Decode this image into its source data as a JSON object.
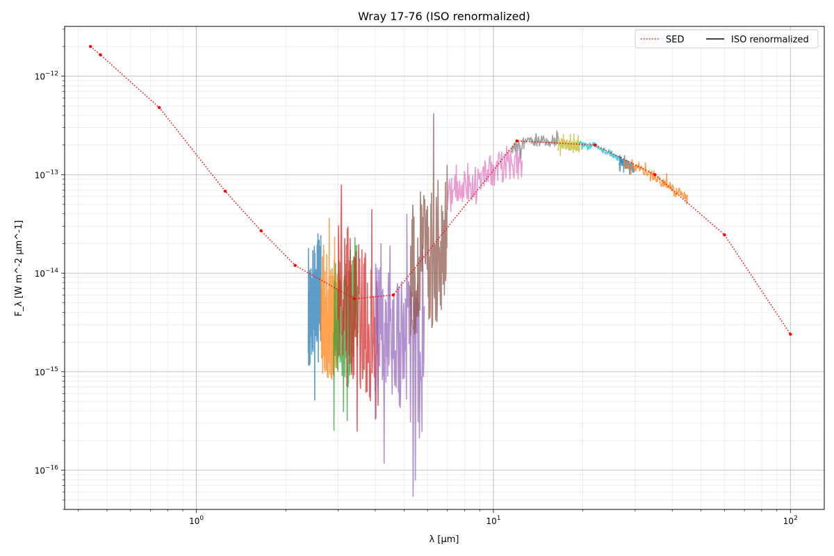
{
  "chart_data": {
    "type": "line",
    "title": "Wray 17-76 (ISO renormalized)",
    "xlabel": "λ [μm]",
    "ylabel": "F_λ [W m^-2 μm^-1]",
    "x_scale": "log",
    "y_scale": "log",
    "xlim": [
      0.36,
      130
    ],
    "ylim": [
      4e-17,
      3.2e-12
    ],
    "grid": "major and minor",
    "legend_position": "top-right",
    "x_ticks": [
      {
        "value": 1,
        "mantissa": "10",
        "exponent": "0"
      },
      {
        "value": 10,
        "mantissa": "10",
        "exponent": "1"
      },
      {
        "value": 100,
        "mantissa": "10",
        "exponent": "2"
      }
    ],
    "y_ticks": [
      {
        "value": 1e-16,
        "mantissa": "10",
        "exponent": "−16"
      },
      {
        "value": 1e-15,
        "mantissa": "10",
        "exponent": "−15"
      },
      {
        "value": 1e-14,
        "mantissa": "10",
        "exponent": "−14"
      },
      {
        "value": 1e-13,
        "mantissa": "10",
        "exponent": "−13"
      },
      {
        "value": 1e-12,
        "mantissa": "10",
        "exponent": "−12"
      }
    ],
    "legend": [
      {
        "label": "SED",
        "style": "dotted",
        "color": "#ff0000"
      },
      {
        "label": "ISO renormalized",
        "style": "solid",
        "color": "#000000"
      }
    ],
    "sed": {
      "name": "SED",
      "color": "#ff0000",
      "x": [
        0.44,
        0.475,
        0.75,
        1.25,
        1.65,
        2.15,
        3.4,
        4.6,
        12,
        22,
        35,
        60,
        100
      ],
      "y": [
        2e-12,
        1.65e-12,
        4.8e-13,
        6.8e-14,
        2.7e-14,
        1.2e-14,
        5.5e-15,
        6e-15,
        2.2e-13,
        2e-13,
        1e-13,
        2.45e-14,
        2.4e-15
      ]
    },
    "iso_segments": [
      {
        "color": "#1f77b4",
        "x_range": [
          2.38,
          2.63
        ],
        "anchors": [
          [
            2.38,
            3e-15
          ],
          [
            2.45,
            5e-15
          ],
          [
            2.55,
            6e-15
          ],
          [
            2.63,
            7e-15
          ]
        ],
        "amplitude": 0.55,
        "seed": 11
      },
      {
        "color": "#ff7f0e",
        "x_range": [
          2.62,
          3.0
        ],
        "anchors": [
          [
            2.62,
            5e-15
          ],
          [
            2.75,
            3.5e-15
          ],
          [
            2.9,
            3.2e-15
          ],
          [
            3.0,
            6e-15
          ]
        ],
        "amplitude": 0.65,
        "seed": 23
      },
      {
        "color": "#2ca02c",
        "x_range": [
          2.9,
          3.5
        ],
        "anchors": [
          [
            2.9,
            5e-15
          ],
          [
            3.1,
            3e-15
          ],
          [
            3.3,
            3.5e-15
          ],
          [
            3.5,
            6e-15
          ]
        ],
        "amplitude": 0.6,
        "seed": 37
      },
      {
        "color": "#d62728",
        "x_range": [
          3.0,
          4.1
        ],
        "anchors": [
          [
            3.0,
            8e-15
          ],
          [
            3.3,
            5e-15
          ],
          [
            3.7,
            3e-15
          ],
          [
            4.1,
            1.5e-15
          ]
        ],
        "amplitude": 0.75,
        "seed": 41
      },
      {
        "color": "#9467bd",
        "x_range": [
          4.0,
          5.85
        ],
        "anchors": [
          [
            4.0,
            8e-15
          ],
          [
            4.5,
            3e-15
          ],
          [
            5.0,
            1.5e-15
          ],
          [
            5.85,
            1.2e-15
          ]
        ],
        "amplitude": 0.8,
        "seed": 53
      },
      {
        "color": "#8c564b",
        "x_range": [
          5.25,
          7.0
        ],
        "anchors": [
          [
            5.25,
            1e-14
          ],
          [
            5.7,
            1.5e-14
          ],
          [
            6.3,
            1.2e-14
          ],
          [
            7.0,
            3e-14
          ]
        ],
        "amplitude": 0.7,
        "seed": 67
      },
      {
        "color": "#e377c2",
        "x_range": [
          7.0,
          12.5
        ],
        "anchors": [
          [
            7.0,
            6e-14
          ],
          [
            8.0,
            7.5e-14
          ],
          [
            9.5,
            1e-13
          ],
          [
            11.0,
            1.25e-13
          ],
          [
            12.5,
            1.4e-13
          ]
        ],
        "amplitude": 0.18,
        "seed": 71
      },
      {
        "color": "#7f7f7f",
        "x_range": [
          11.5,
          16.5
        ],
        "anchors": [
          [
            11.5,
            1.8e-13
          ],
          [
            13.0,
            2.2e-13
          ],
          [
            15.0,
            2.2e-13
          ],
          [
            16.5,
            2.2e-13
          ]
        ],
        "amplitude": 0.06,
        "seed": 83
      },
      {
        "color": "#bcbd22",
        "x_range": [
          16.5,
          19.5
        ],
        "anchors": [
          [
            16.5,
            2.2e-13
          ],
          [
            17.5,
            2e-13
          ],
          [
            18.5,
            1.95e-13
          ],
          [
            19.5,
            1.95e-13
          ]
        ],
        "amplitude": 0.06,
        "seed": 97
      },
      {
        "color": "#17becf",
        "x_range": [
          19.5,
          27.5
        ],
        "anchors": [
          [
            19.5,
            2.05e-13
          ],
          [
            22.0,
            1.95e-13
          ],
          [
            25.0,
            1.6e-13
          ],
          [
            27.5,
            1.35e-13
          ]
        ],
        "amplitude": 0.03,
        "seed": 101
      },
      {
        "color": "#1f77b4",
        "x_range": [
          26.5,
          29.8
        ],
        "anchors": [
          [
            26.5,
            1.4e-13
          ],
          [
            28.0,
            1.3e-13
          ],
          [
            29.2,
            1.2e-13
          ],
          [
            29.8,
            1.1e-13
          ]
        ],
        "amplitude": 0.05,
        "seed": 113
      },
      {
        "color": "#ff7f0e",
        "x_range": [
          27.5,
          45.0
        ],
        "anchors": [
          [
            27.5,
            1.35e-13
          ],
          [
            32.0,
            1.15e-13
          ],
          [
            36.0,
            9e-14
          ],
          [
            40.0,
            7e-14
          ],
          [
            45.0,
            6e-14
          ]
        ],
        "amplitude": 0.06,
        "seed": 127
      }
    ]
  }
}
